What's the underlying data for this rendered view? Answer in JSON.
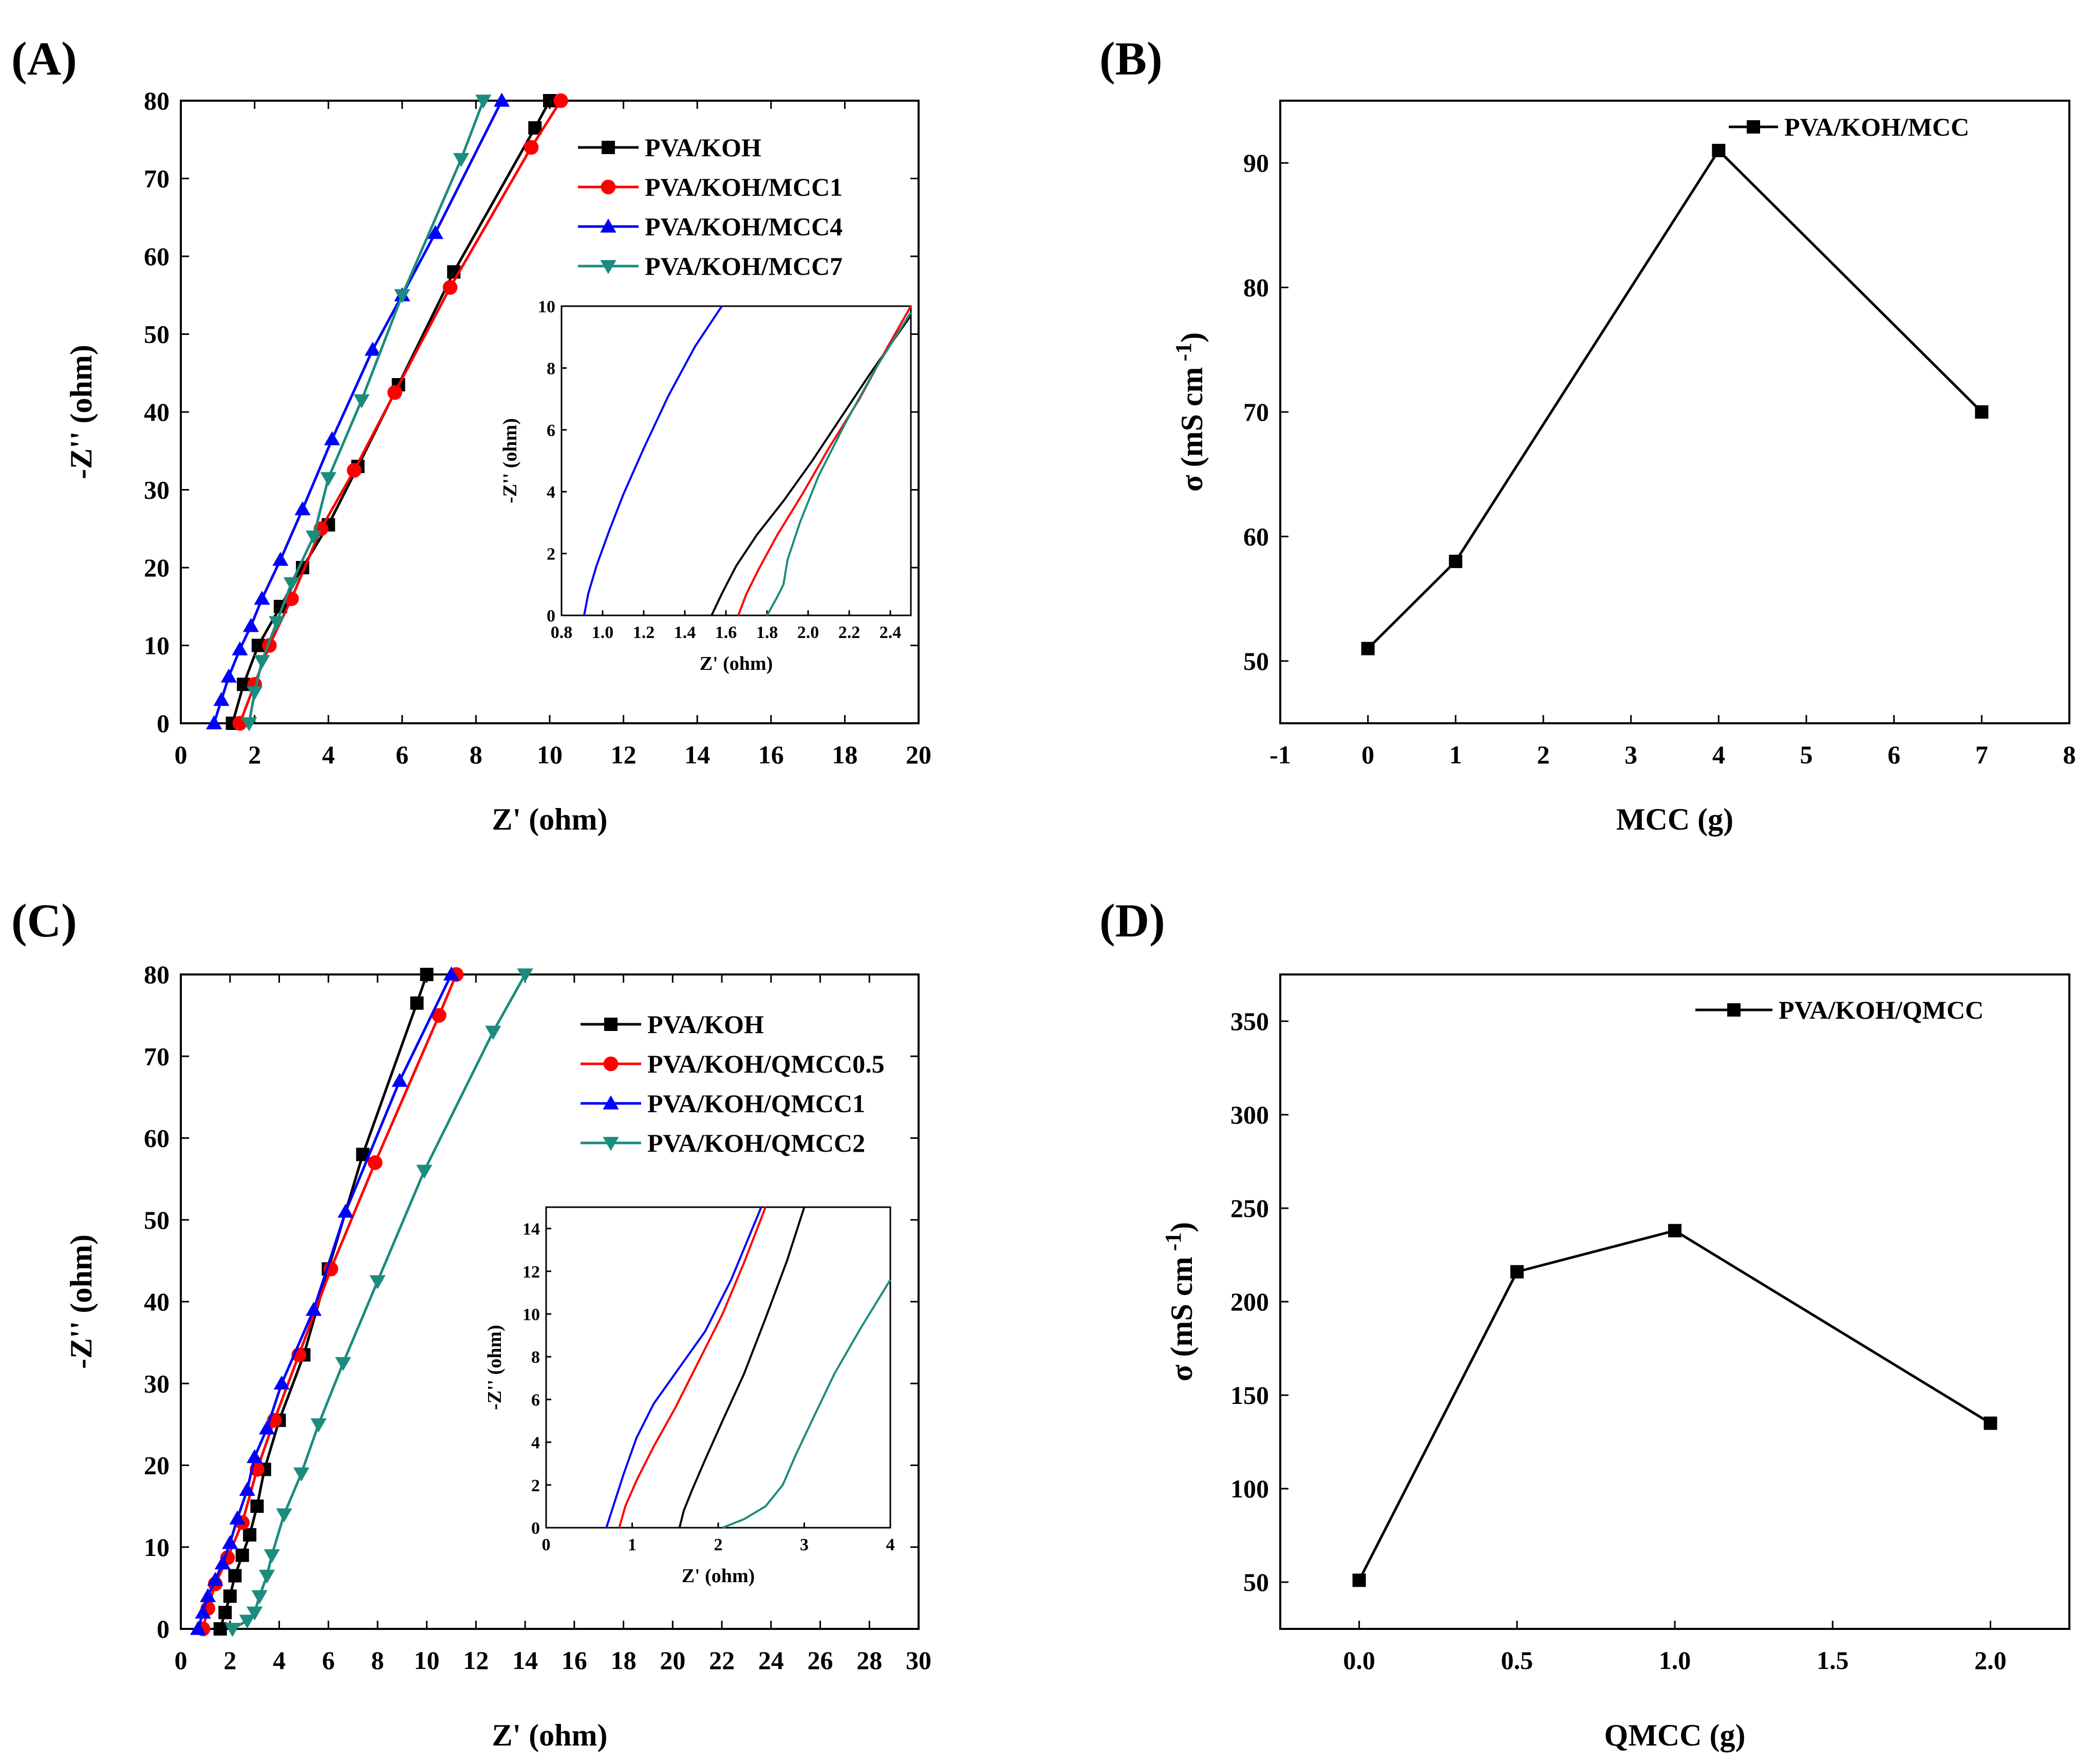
{
  "chart_data": [
    {
      "panel_label": "(A)",
      "type": "line",
      "xlabel": "Z' (ohm)",
      "ylabel": "-Z'' (ohm)",
      "xlim": [
        0,
        20
      ],
      "ylim": [
        0,
        80
      ],
      "xticks": [
        "0",
        "2",
        "4",
        "6",
        "8",
        "10",
        "12",
        "14",
        "16",
        "18",
        "20"
      ],
      "yticks": [
        "0",
        "10",
        "20",
        "30",
        "40",
        "50",
        "60",
        "70",
        "80"
      ],
      "legend_position": "top-right",
      "series": [
        {
          "name": "PVA/KOH",
          "color": "#000000",
          "marker": "square",
          "x": [
            1.4,
            1.7,
            2.1,
            2.7,
            3.3,
            4.0,
            4.8,
            5.9,
            7.4,
            9.6,
            10.0
          ],
          "y": [
            0,
            5,
            10,
            15,
            20,
            25.5,
            33,
            43.5,
            58,
            76.5,
            80
          ]
        },
        {
          "name": "PVA/KOH/MCC1",
          "color": "#ff0000",
          "marker": "circle",
          "x": [
            1.6,
            2.0,
            2.4,
            3.0,
            3.8,
            4.7,
            5.8,
            7.3,
            9.5,
            10.3
          ],
          "y": [
            0,
            5,
            10,
            16,
            25,
            32.5,
            42.5,
            56,
            74,
            80
          ]
        },
        {
          "name": "PVA/KOH/MCC4",
          "color": "#0000ff",
          "marker": "triangle-up",
          "x": [
            0.9,
            1.1,
            1.3,
            1.6,
            1.9,
            2.2,
            2.7,
            3.3,
            4.1,
            5.2,
            6.0,
            6.9,
            8.7
          ],
          "y": [
            0,
            3,
            6,
            9.5,
            12.5,
            16,
            21,
            27.5,
            36.5,
            48,
            55,
            63,
            80
          ]
        },
        {
          "name": "PVA/KOH/MCC7",
          "color": "#1b8c7e",
          "marker": "triangle-down",
          "x": [
            1.85,
            2.0,
            2.2,
            2.6,
            3.0,
            3.6,
            4.0,
            4.9,
            6.0,
            7.6,
            8.2
          ],
          "y": [
            0,
            4,
            8,
            13,
            18,
            24,
            31.5,
            41.5,
            55,
            72.5,
            80
          ]
        }
      ],
      "inset": {
        "xlabel": "Z' (ohm)",
        "ylabel": "-Z'' (ohm)",
        "xlim": [
          0.8,
          2.5
        ],
        "ylim": [
          0,
          10
        ],
        "xticks": [
          "0.8",
          "1.0",
          "1.2",
          "1.4",
          "1.6",
          "1.8",
          "2.0",
          "2.2",
          "2.4"
        ],
        "yticks": [
          "0",
          "2",
          "4",
          "6",
          "8",
          "10"
        ],
        "series": [
          {
            "color": "#000000",
            "x": [
              1.53,
              1.58,
              1.65,
              1.75,
              1.88,
              2.02,
              2.15,
              2.3,
              2.5
            ],
            "y": [
              0,
              0.7,
              1.6,
              2.6,
              3.7,
              5,
              6.3,
              7.8,
              9.7
            ]
          },
          {
            "color": "#ff0000",
            "x": [
              1.66,
              1.7,
              1.76,
              1.85,
              1.97,
              2.1,
              2.25,
              2.38,
              2.5
            ],
            "y": [
              0,
              0.7,
              1.5,
              2.6,
              3.9,
              5.4,
              7,
              8.6,
              10
            ]
          },
          {
            "color": "#0000ff",
            "x": [
              0.91,
              0.93,
              0.97,
              1.03,
              1.1,
              1.2,
              1.32,
              1.45,
              1.58
            ],
            "y": [
              0,
              0.7,
              1.6,
              2.7,
              3.9,
              5.4,
              7.1,
              8.7,
              10
            ]
          },
          {
            "color": "#1b8c7e",
            "x": [
              1.8,
              1.85,
              1.88,
              1.9,
              1.96,
              2.05,
              2.18,
              2.33,
              2.5
            ],
            "y": [
              0,
              0.6,
              1.0,
              1.8,
              3.0,
              4.5,
              6.2,
              8.0,
              9.8
            ]
          }
        ]
      }
    },
    {
      "panel_label": "(B)",
      "type": "line",
      "xlabel": "MCC  (g)",
      "ylabel": "σ  (mS cm",
      "ylabel_sup": "-1",
      "ylabel_close": ")",
      "xlim": [
        -1,
        8
      ],
      "ylim": [
        45,
        95
      ],
      "xticks": [
        "-1",
        "0",
        "1",
        "2",
        "3",
        "4",
        "5",
        "6",
        "7",
        "8"
      ],
      "yticks": [
        "50",
        "60",
        "70",
        "80",
        "90"
      ],
      "legend_position": "top-right",
      "series": [
        {
          "name": "PVA/KOH/MCC",
          "color": "#000000",
          "marker": "square",
          "x": [
            0,
            1,
            4,
            7
          ],
          "y": [
            51,
            58,
            91,
            70
          ]
        }
      ]
    },
    {
      "panel_label": "(C)",
      "type": "line",
      "xlabel": "Z' (ohm)",
      "ylabel": "-Z'' (ohm)",
      "xlim": [
        0,
        30
      ],
      "ylim": [
        0,
        80
      ],
      "xticks": [
        "0",
        "2",
        "4",
        "6",
        "8",
        "10",
        "12",
        "14",
        "16",
        "18",
        "20",
        "22",
        "24",
        "26",
        "28",
        "30"
      ],
      "yticks": [
        "0",
        "10",
        "20",
        "30",
        "40",
        "50",
        "60",
        "70",
        "80"
      ],
      "legend_position": "top-right",
      "series": [
        {
          "name": "PVA/KOH",
          "color": "#000000",
          "marker": "square",
          "x": [
            1.6,
            1.8,
            2.0,
            2.2,
            2.5,
            2.8,
            3.1,
            3.4,
            4.0,
            5.0,
            6.0,
            7.4,
            9.6,
            10.0
          ],
          "y": [
            0,
            2,
            4,
            6.5,
            9,
            11.5,
            15,
            19.5,
            25.5,
            33.5,
            44,
            58,
            76.5,
            80
          ]
        },
        {
          "name": "PVA/KOH/QMCC0.5",
          "color": "#ff0000",
          "marker": "circle",
          "x": [
            0.9,
            1.1,
            1.4,
            1.9,
            2.5,
            3.1,
            3.8,
            4.8,
            6.1,
            7.9,
            10.5,
            11.2
          ],
          "y": [
            0,
            2.5,
            5.5,
            8.7,
            13,
            19.5,
            25.5,
            33.5,
            44,
            57,
            75,
            80
          ]
        },
        {
          "name": "PVA/KOH/QMCC1",
          "color": "#0000ff",
          "marker": "triangle-up",
          "x": [
            0.7,
            0.9,
            1.1,
            1.4,
            1.7,
            2.0,
            2.3,
            2.7,
            3.0,
            3.5,
            4.1,
            5.4,
            6.7,
            8.9,
            11.0
          ],
          "y": [
            0,
            2,
            4,
            6,
            8,
            10.5,
            13.5,
            17,
            21,
            24.5,
            30,
            39,
            51,
            67,
            80
          ]
        },
        {
          "name": "PVA/KOH/QMCC2",
          "color": "#1b8c7e",
          "marker": "triangle-down",
          "x": [
            2.1,
            2.7,
            3.0,
            3.2,
            3.5,
            3.7,
            4.2,
            4.9,
            5.6,
            6.6,
            8.0,
            9.9,
            12.7,
            14.0
          ],
          "y": [
            0,
            1,
            2,
            4,
            6.5,
            9,
            14,
            19,
            25,
            32.5,
            42.5,
            56,
            73,
            80
          ]
        }
      ],
      "inset": {
        "xlabel": "Z' (ohm)",
        "ylabel": "-Z'' (ohm)",
        "xlim": [
          0,
          4
        ],
        "ylim": [
          0,
          15
        ],
        "xticks": [
          "0",
          "1",
          "2",
          "3",
          "4"
        ],
        "yticks": [
          "0",
          "2",
          "4",
          "6",
          "8",
          "10",
          "12",
          "14"
        ],
        "series": [
          {
            "color": "#000000",
            "x": [
              1.55,
              1.6,
              1.7,
              1.85,
              2.05,
              2.3,
              2.55,
              2.8,
              3.0
            ],
            "y": [
              0,
              0.8,
              1.8,
              3.2,
              5,
              7.2,
              9.8,
              12.5,
              15
            ]
          },
          {
            "color": "#ff0000",
            "x": [
              0.85,
              0.92,
              1.05,
              1.25,
              1.5,
              1.75,
              2.05,
              2.3,
              2.55
            ],
            "y": [
              0,
              1,
              2.2,
              3.8,
              5.6,
              7.6,
              10,
              12.4,
              15
            ]
          },
          {
            "color": "#0000ff",
            "x": [
              0.7,
              0.78,
              0.9,
              1.05,
              1.25,
              1.55,
              1.85,
              2.15,
              2.5
            ],
            "y": [
              0,
              1,
              2.5,
              4.2,
              5.8,
              7.5,
              9.2,
              11.6,
              15
            ]
          },
          {
            "color": "#1b8c7e",
            "x": [
              2.05,
              2.3,
              2.55,
              2.75,
              2.9,
              3.1,
              3.35,
              3.65,
              4.0
            ],
            "y": [
              0,
              0.4,
              1.0,
              2.0,
              3.4,
              5.1,
              7.2,
              9.3,
              11.6
            ]
          }
        ]
      }
    },
    {
      "panel_label": "(D)",
      "type": "line",
      "xlabel": "QMCC (g)",
      "ylabel": "σ  (mS cm",
      "ylabel_sup": "-1",
      "ylabel_close": ")",
      "xlim": [
        -0.25,
        2.25
      ],
      "ylim": [
        25,
        375
      ],
      "xticks": [
        "0.0",
        "0.5",
        "1.0",
        "1.5",
        "2.0"
      ],
      "yticks": [
        "50",
        "100",
        "150",
        "200",
        "250",
        "300",
        "350"
      ],
      "legend_position": "top-right",
      "series": [
        {
          "name": "PVA/KOH/QMCC",
          "color": "#000000",
          "marker": "square",
          "x": [
            0,
            0.5,
            1.0,
            2.0
          ],
          "y": [
            51,
            216,
            238,
            135
          ]
        }
      ]
    }
  ]
}
